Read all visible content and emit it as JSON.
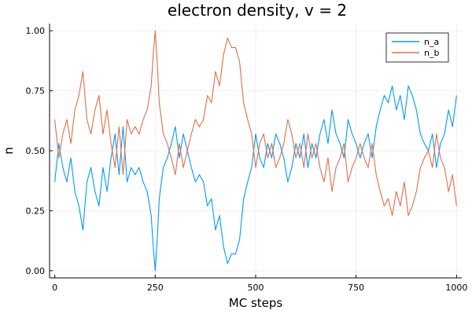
{
  "chart_data": {
    "type": "line",
    "title": "electron density, v = 2",
    "xlabel": "MC steps",
    "ylabel": "n",
    "xlim": [
      -13,
      1013
    ],
    "ylim": [
      -0.03,
      1.03
    ],
    "xticks": [
      0,
      250,
      500,
      750,
      1000
    ],
    "xtick_labels": [
      "0",
      "250",
      "500",
      "750",
      "1000"
    ],
    "yticks": [
      0.0,
      0.25,
      0.5,
      0.75,
      1.0
    ],
    "ytick_labels": [
      "0.00",
      "0.25",
      "0.50",
      "0.75",
      "1.00"
    ],
    "grid": true,
    "legend_position": "top-right",
    "series": [
      {
        "name": "n_a",
        "color": "#009AFA",
        "x": [
          0,
          10,
          20,
          30,
          40,
          50,
          60,
          70,
          80,
          90,
          100,
          110,
          120,
          130,
          140,
          150,
          160,
          170,
          180,
          190,
          200,
          210,
          220,
          230,
          240,
          245,
          250,
          255,
          260,
          270,
          280,
          290,
          300,
          310,
          320,
          330,
          340,
          350,
          360,
          370,
          380,
          390,
          400,
          410,
          420,
          430,
          440,
          450,
          460,
          470,
          480,
          490,
          500,
          510,
          520,
          530,
          540,
          550,
          560,
          570,
          580,
          590,
          600,
          610,
          620,
          630,
          640,
          650,
          660,
          670,
          680,
          690,
          700,
          710,
          720,
          730,
          740,
          750,
          760,
          770,
          780,
          790,
          800,
          810,
          820,
          830,
          840,
          850,
          860,
          870,
          880,
          890,
          900,
          910,
          920,
          930,
          940,
          950,
          960,
          970,
          980,
          990,
          1000
        ],
        "values": [
          0.37,
          0.53,
          0.43,
          0.37,
          0.47,
          0.33,
          0.27,
          0.17,
          0.37,
          0.43,
          0.33,
          0.27,
          0.43,
          0.33,
          0.47,
          0.57,
          0.4,
          0.6,
          0.37,
          0.43,
          0.4,
          0.43,
          0.37,
          0.33,
          0.23,
          0.1,
          0.0,
          0.13,
          0.3,
          0.43,
          0.47,
          0.53,
          0.6,
          0.47,
          0.57,
          0.5,
          0.43,
          0.37,
          0.4,
          0.37,
          0.27,
          0.3,
          0.17,
          0.23,
          0.1,
          0.03,
          0.07,
          0.07,
          0.13,
          0.3,
          0.37,
          0.43,
          0.57,
          0.47,
          0.43,
          0.53,
          0.47,
          0.57,
          0.53,
          0.47,
          0.37,
          0.43,
          0.53,
          0.47,
          0.57,
          0.43,
          0.53,
          0.47,
          0.57,
          0.63,
          0.53,
          0.67,
          0.57,
          0.53,
          0.47,
          0.63,
          0.57,
          0.53,
          0.47,
          0.53,
          0.57,
          0.47,
          0.6,
          0.67,
          0.73,
          0.7,
          0.77,
          0.67,
          0.73,
          0.63,
          0.77,
          0.73,
          0.67,
          0.57,
          0.53,
          0.5,
          0.57,
          0.43,
          0.53,
          0.57,
          0.67,
          0.6,
          0.73
        ]
      },
      {
        "name": "n_b",
        "color": "#E26F46",
        "x": [
          0,
          10,
          20,
          30,
          40,
          50,
          60,
          70,
          80,
          90,
          100,
          110,
          120,
          130,
          140,
          150,
          160,
          170,
          180,
          190,
          200,
          210,
          220,
          230,
          240,
          245,
          250,
          255,
          260,
          270,
          280,
          290,
          300,
          310,
          320,
          330,
          340,
          350,
          360,
          370,
          380,
          390,
          400,
          410,
          420,
          430,
          440,
          450,
          460,
          470,
          480,
          490,
          500,
          510,
          520,
          530,
          540,
          550,
          560,
          570,
          580,
          590,
          600,
          610,
          620,
          630,
          640,
          650,
          660,
          670,
          680,
          690,
          700,
          710,
          720,
          730,
          740,
          750,
          760,
          770,
          780,
          790,
          800,
          810,
          820,
          830,
          840,
          850,
          860,
          870,
          880,
          890,
          900,
          910,
          920,
          930,
          940,
          950,
          960,
          970,
          980,
          990,
          1000
        ],
        "values": [
          0.63,
          0.47,
          0.57,
          0.63,
          0.53,
          0.67,
          0.73,
          0.83,
          0.63,
          0.57,
          0.67,
          0.73,
          0.57,
          0.67,
          0.53,
          0.43,
          0.6,
          0.4,
          0.63,
          0.57,
          0.6,
          0.57,
          0.63,
          0.67,
          0.77,
          0.9,
          1.0,
          0.87,
          0.7,
          0.57,
          0.53,
          0.47,
          0.4,
          0.53,
          0.43,
          0.5,
          0.57,
          0.63,
          0.6,
          0.63,
          0.73,
          0.7,
          0.83,
          0.77,
          0.9,
          0.97,
          0.93,
          0.93,
          0.87,
          0.7,
          0.63,
          0.57,
          0.43,
          0.53,
          0.57,
          0.47,
          0.53,
          0.43,
          0.47,
          0.53,
          0.63,
          0.57,
          0.47,
          0.53,
          0.43,
          0.57,
          0.47,
          0.53,
          0.43,
          0.37,
          0.47,
          0.33,
          0.43,
          0.47,
          0.53,
          0.37,
          0.43,
          0.47,
          0.53,
          0.47,
          0.43,
          0.53,
          0.4,
          0.33,
          0.27,
          0.3,
          0.23,
          0.33,
          0.27,
          0.37,
          0.23,
          0.27,
          0.33,
          0.43,
          0.47,
          0.5,
          0.43,
          0.57,
          0.47,
          0.43,
          0.33,
          0.4,
          0.27
        ]
      }
    ]
  }
}
